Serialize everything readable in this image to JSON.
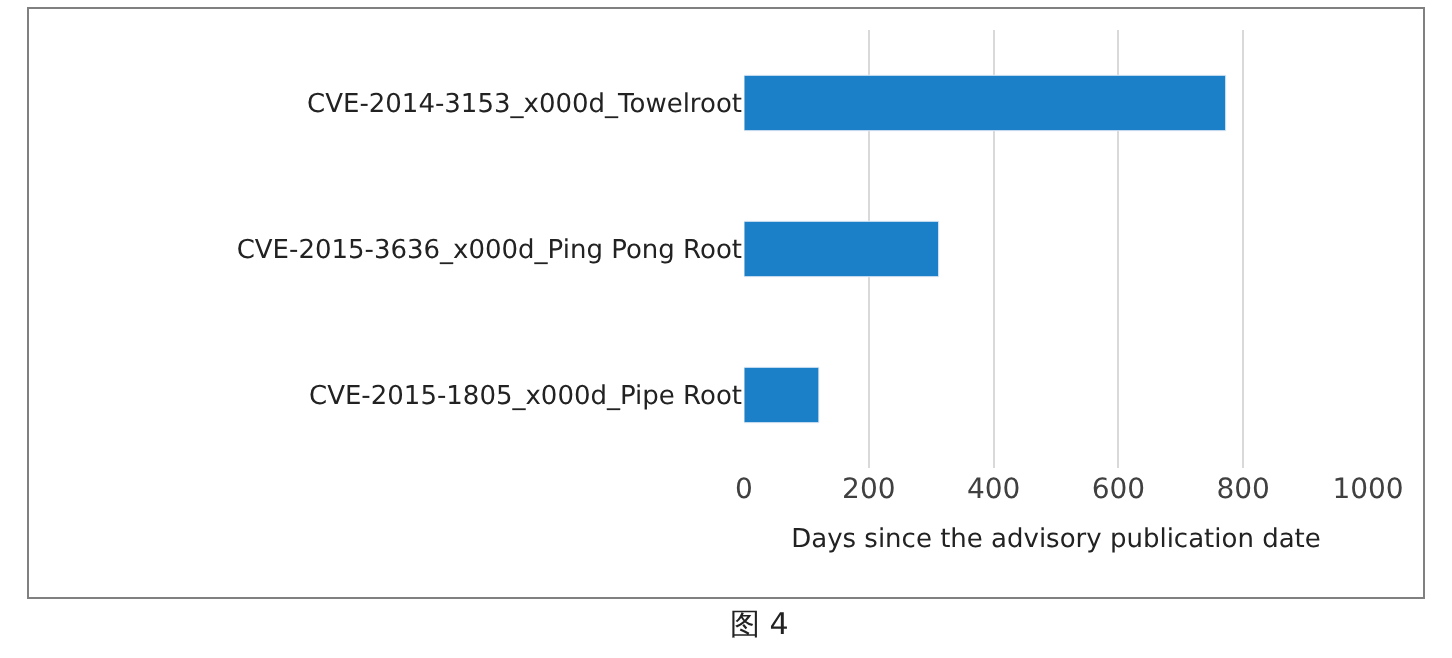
{
  "chart_data": {
    "type": "bar",
    "orientation": "horizontal",
    "categories": [
      "CVE-2014-3153_x000d_Towelroot",
      "CVE-2015-3636_x000d_Ping Pong Root",
      "CVE-2015-1805_x000d_Pipe Root"
    ],
    "values": [
      772,
      312,
      120
    ],
    "color": "#1c80c8",
    "xlabel": "Days since the advisory publication date",
    "xlim": [
      0,
      1000
    ],
    "xticks": [
      0,
      200,
      400,
      600,
      800,
      1000
    ],
    "grid": "x",
    "annotations": [
      "图 4"
    ]
  }
}
